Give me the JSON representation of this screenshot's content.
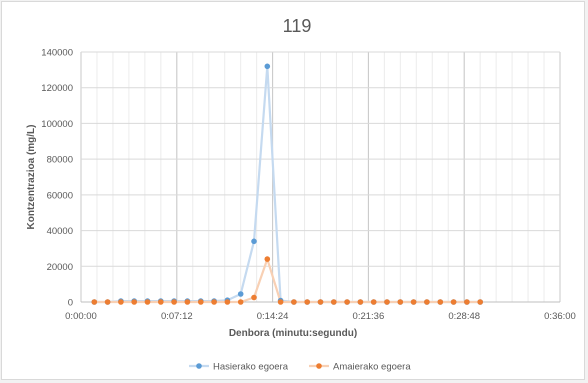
{
  "chart_data": {
    "type": "line",
    "title": "119",
    "xlabel": "Denbora (minutu:segundu)",
    "ylabel": "Kontzentrazioa (mg/L)",
    "x_unit": "seconds",
    "xlim": [
      0,
      2160
    ],
    "ylim": [
      0,
      140000
    ],
    "x_ticks": [
      {
        "value": 0,
        "label": "0:00:00"
      },
      {
        "value": 432,
        "label": "0:07:12"
      },
      {
        "value": 864,
        "label": "0:14:24"
      },
      {
        "value": 1296,
        "label": "0:21:36"
      },
      {
        "value": 1728,
        "label": "0:28:48"
      },
      {
        "value": 2160,
        "label": "0:36:00"
      }
    ],
    "y_ticks": [
      {
        "value": 0,
        "label": "0"
      },
      {
        "value": 20000,
        "label": "20000"
      },
      {
        "value": 40000,
        "label": "40000"
      },
      {
        "value": 60000,
        "label": "60000"
      },
      {
        "value": 80000,
        "label": "80000"
      },
      {
        "value": 100000,
        "label": "100000"
      },
      {
        "value": 120000,
        "label": "120000"
      },
      {
        "value": 140000,
        "label": "140000"
      }
    ],
    "grid": true,
    "legend_position": "bottom",
    "x": [
      60,
      120,
      180,
      240,
      300,
      360,
      420,
      480,
      540,
      600,
      660,
      720,
      780,
      840,
      900,
      960,
      1020,
      1080,
      1140,
      1200,
      1260,
      1320,
      1380,
      1440,
      1500,
      1560,
      1620,
      1680,
      1740,
      1800
    ],
    "series": [
      {
        "name": "Hasierako egoera",
        "color": "#5b9bd5",
        "line_color": "#c5daf0",
        "values": [
          0,
          0,
          500,
          500,
          500,
          500,
          500,
          500,
          500,
          500,
          1000,
          4500,
          34000,
          132000,
          800,
          0,
          0,
          0,
          0,
          0,
          0,
          0,
          0,
          0,
          0,
          0,
          0,
          0,
          0,
          0
        ]
      },
      {
        "name": "Amaierako egoera",
        "color": "#ed7d31",
        "line_color": "#f8d0b4",
        "values": [
          0,
          0,
          0,
          0,
          0,
          0,
          0,
          0,
          0,
          0,
          0,
          0,
          2500,
          24000,
          0,
          0,
          0,
          0,
          0,
          0,
          0,
          0,
          0,
          0,
          0,
          0,
          0,
          0,
          0,
          0
        ]
      }
    ]
  }
}
